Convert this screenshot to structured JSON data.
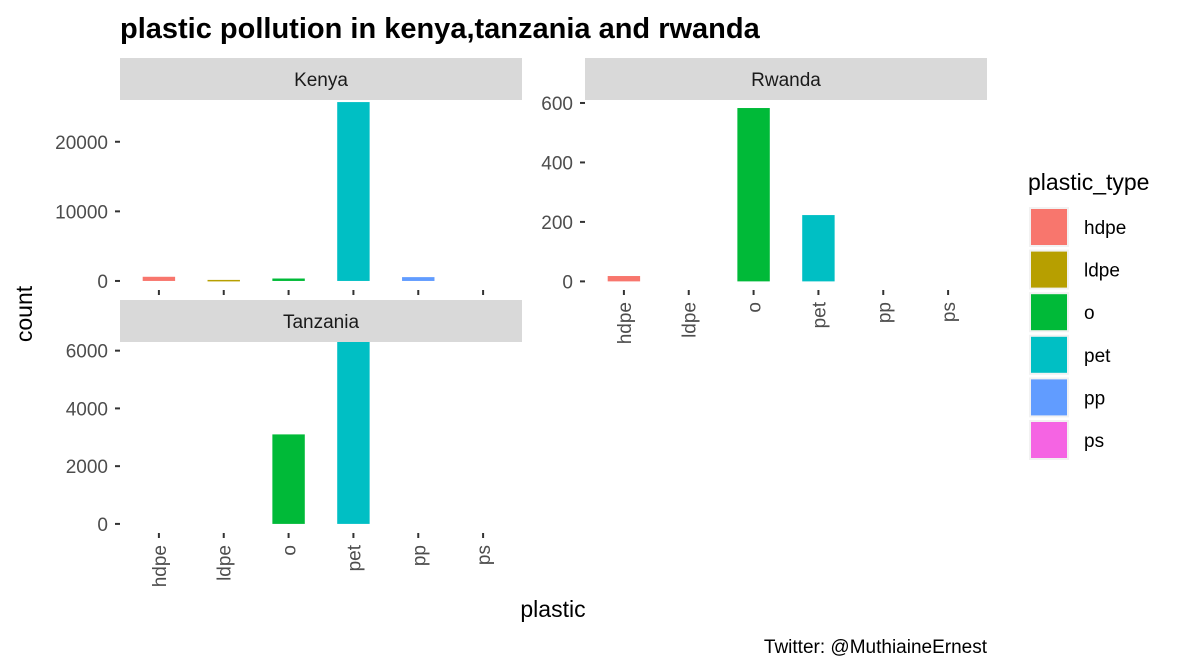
{
  "chart_data": {
    "type": "bar",
    "title": "plastic pollution in kenya,tanzania and rwanda",
    "xlabel": "plastic",
    "ylabel": "count",
    "caption": "Twitter: @MuthiaineErnest",
    "categories": [
      "hdpe",
      "ldpe",
      "o",
      "pet",
      "pp",
      "ps"
    ],
    "legend": {
      "title": "plastic_type",
      "position": "right",
      "entries": [
        {
          "label": "hdpe",
          "color": "#F8766D"
        },
        {
          "label": "ldpe",
          "color": "#B79F00"
        },
        {
          "label": "o",
          "color": "#00BA38"
        },
        {
          "label": "pet",
          "color": "#00BFC4"
        },
        {
          "label": "pp",
          "color": "#619CFF"
        },
        {
          "label": "ps",
          "color": "#F564E3"
        }
      ]
    },
    "grid": false,
    "facets": [
      {
        "name": "Kenya",
        "ylim": [
          -1300,
          26000
        ],
        "yticks": [
          0,
          10000,
          20000
        ],
        "ytick_labels": [
          "0",
          "10000",
          "20000"
        ],
        "values": [
          600,
          150,
          350,
          25700,
          550,
          0
        ],
        "show_x_tick_labels": false
      },
      {
        "name": "Rwanda",
        "ylim": [
          -29,
          610
        ],
        "yticks": [
          0,
          200,
          400,
          600
        ],
        "ytick_labels": [
          "0",
          "200",
          "400",
          "600"
        ],
        "values": [
          18,
          0,
          583,
          223,
          0,
          0
        ],
        "show_x_tick_labels": true
      },
      {
        "name": "Tanzania",
        "ylim": [
          -315,
          6300
        ],
        "yticks": [
          0,
          2000,
          4000,
          6000
        ],
        "ytick_labels": [
          "0",
          "2000",
          "4000",
          "6000"
        ],
        "values": [
          0,
          0,
          3100,
          6300,
          0,
          0
        ],
        "show_x_tick_labels": true
      }
    ]
  }
}
